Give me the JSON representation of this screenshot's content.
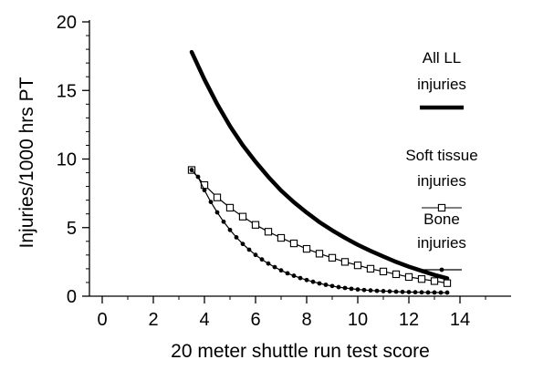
{
  "chart_data": {
    "type": "line",
    "title": "",
    "xlabel": "20 meter shuttle run test score",
    "ylabel": "Injuries/1000 hrs PT",
    "xlim": [
      -0.5,
      16
    ],
    "ylim": [
      0,
      20
    ],
    "x_ticks": [
      0,
      2,
      4,
      6,
      8,
      10,
      12,
      14
    ],
    "y_ticks": [
      0,
      5,
      10,
      15,
      20
    ],
    "grid": false,
    "legend_position": "right",
    "series": [
      {
        "name": "All LL injuries",
        "legend_lines": [
          "All LL",
          "injuries"
        ],
        "style": "thick-line",
        "color": "#000000",
        "x": [
          3.5,
          4.0,
          4.5,
          5.0,
          5.5,
          6.0,
          6.5,
          7.0,
          7.5,
          8.0,
          8.5,
          9.0,
          9.5,
          10.0,
          10.5,
          11.0,
          11.5,
          12.0,
          12.5,
          13.0,
          13.5
        ],
        "y": [
          17.8,
          15.8,
          14.0,
          12.4,
          11.0,
          9.8,
          8.7,
          7.7,
          6.85,
          6.1,
          5.4,
          4.8,
          4.25,
          3.75,
          3.3,
          2.9,
          2.5,
          2.15,
          1.85,
          1.55,
          1.3
        ]
      },
      {
        "name": "Soft tissue injuries",
        "legend_lines": [
          "Soft tissue",
          "injuries"
        ],
        "style": "line-open-square",
        "color": "#000000",
        "x": [
          3.5,
          4.0,
          4.5,
          5.0,
          5.5,
          6.0,
          6.5,
          7.0,
          7.5,
          8.0,
          8.5,
          9.0,
          9.5,
          10.0,
          10.5,
          11.0,
          11.5,
          12.0,
          12.5,
          13.0,
          13.5
        ],
        "y": [
          9.2,
          8.1,
          7.2,
          6.45,
          5.8,
          5.2,
          4.7,
          4.25,
          3.85,
          3.45,
          3.1,
          2.8,
          2.5,
          2.25,
          2.0,
          1.8,
          1.6,
          1.4,
          1.25,
          1.1,
          0.95
        ]
      },
      {
        "name": "Bone injuries",
        "legend_lines": [
          "Bone",
          "injuries"
        ],
        "style": "line-filled-dot",
        "color": "#000000",
        "x": [
          3.5,
          3.75,
          4.0,
          4.25,
          4.5,
          4.75,
          5.0,
          5.25,
          5.5,
          5.75,
          6.0,
          6.25,
          6.5,
          6.75,
          7.0,
          7.25,
          7.5,
          7.75,
          8.0,
          8.25,
          8.5,
          8.75,
          9.0,
          9.25,
          9.5,
          9.75,
          10.0,
          10.25,
          10.5,
          10.75,
          11.0,
          11.25,
          11.5,
          11.75,
          12.0,
          12.25,
          12.5,
          12.75,
          13.0,
          13.25,
          13.5
        ],
        "y": [
          9.2,
          8.7,
          7.73,
          6.87,
          6.11,
          5.43,
          4.83,
          4.29,
          3.81,
          3.39,
          3.01,
          2.68,
          2.38,
          2.12,
          1.88,
          1.67,
          1.49,
          1.32,
          1.18,
          1.05,
          0.93,
          0.83,
          0.74,
          0.66,
          0.6,
          0.54,
          0.49,
          0.45,
          0.42,
          0.39,
          0.37,
          0.35,
          0.33,
          0.31,
          0.3,
          0.29,
          0.28,
          0.27,
          0.27,
          0.26,
          0.26
        ]
      }
    ]
  }
}
